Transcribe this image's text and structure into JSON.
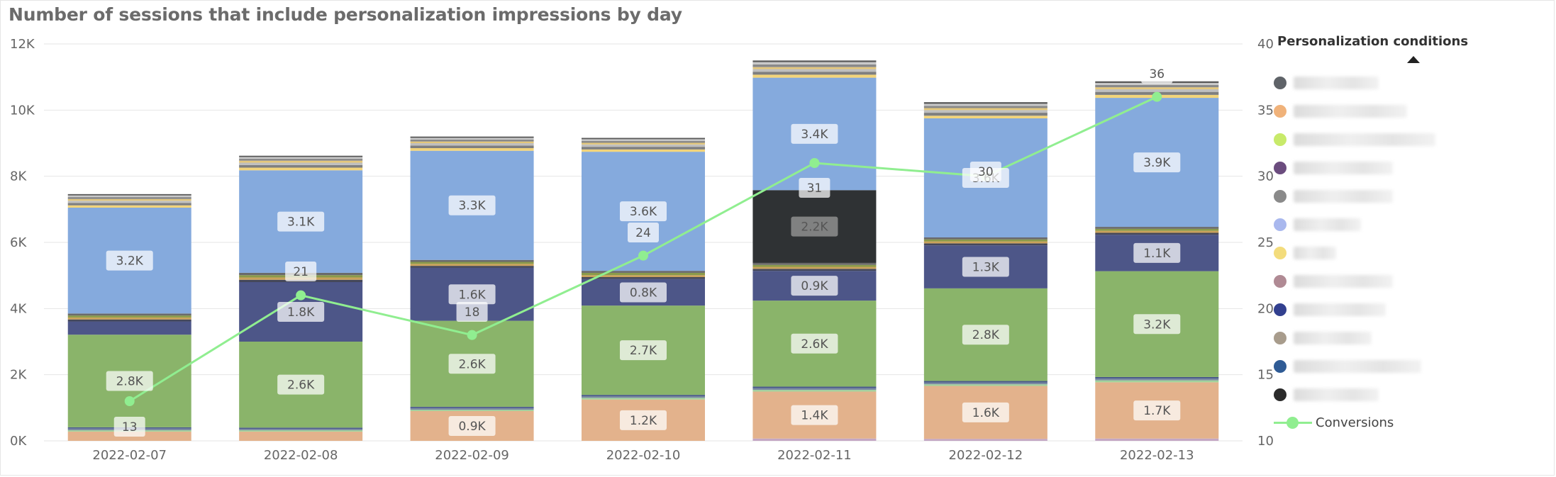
{
  "title": "Number of sessions that include personalization impressions by day",
  "legend": {
    "title": "Personalization conditions",
    "items": [
      {
        "icon": "legend-dot-icon",
        "color": "#5f6368"
      },
      {
        "icon": "legend-dot-icon",
        "color": "#f0b27a"
      },
      {
        "icon": "legend-dot-icon",
        "color": "#c8ea6a"
      },
      {
        "icon": "legend-dot-icon",
        "color": "#6b4c7e"
      },
      {
        "icon": "legend-dot-icon",
        "color": "#8a8a8a"
      },
      {
        "icon": "legend-dot-icon",
        "color": "#a9b8ee"
      },
      {
        "icon": "legend-dot-icon",
        "color": "#f3dc7c"
      },
      {
        "icon": "legend-dot-icon",
        "color": "#b08a94"
      },
      {
        "icon": "legend-dot-icon",
        "color": "#32408f"
      },
      {
        "icon": "legend-dot-icon",
        "color": "#a89c8c"
      },
      {
        "icon": "legend-dot-icon",
        "color": "#2f5b95"
      },
      {
        "icon": "legend-dot-icon",
        "color": "#2b2b2b"
      }
    ],
    "line_label": "Conversions",
    "line_color": "#90ee90"
  },
  "chart_data": {
    "type": "bar",
    "stacked": true,
    "categories": [
      "2022-02-07",
      "2022-02-08",
      "2022-02-09",
      "2022-02-10",
      "2022-02-11",
      "2022-02-12",
      "2022-02-13"
    ],
    "y_axis_left": {
      "ticks": [
        "0K",
        "2K",
        "4K",
        "6K",
        "8K",
        "10K",
        "12K"
      ],
      "range": [
        0,
        12000
      ]
    },
    "y_axis_right": {
      "ticks": [
        "10",
        "15",
        "20",
        "25",
        "30",
        "35",
        "40"
      ],
      "range": [
        10,
        40
      ]
    },
    "grid": true,
    "legend_position": "right",
    "series": [
      {
        "color": "#c4a7c4",
        "values": [
          0,
          0,
          0,
          0,
          70,
          60,
          70
        ]
      },
      {
        "color": "#e3b28c",
        "values": [
          280,
          280,
          900,
          1250,
          1420,
          1600,
          1700
        ],
        "labels": [
          "",
          "",
          "0.9K",
          "1.2K",
          "1.4K",
          "1.6K",
          "1.7K"
        ]
      },
      {
        "color": "#a3d39c",
        "values": [
          40,
          40,
          40,
          50,
          50,
          50,
          60
        ]
      },
      {
        "color": "#7a8aa0",
        "values": [
          50,
          40,
          50,
          50,
          50,
          50,
          50
        ]
      },
      {
        "color": "#4a5a8a",
        "values": [
          40,
          40,
          40,
          40,
          50,
          50,
          50
        ]
      },
      {
        "color": "#8ab46a",
        "values": [
          2800,
          2600,
          2600,
          2700,
          2600,
          2800,
          3200
        ],
        "labels": [
          "2.8K",
          "2.6K",
          "2.6K",
          "2.7K",
          "2.6K",
          "2.8K",
          "3.2K"
        ]
      },
      {
        "color": "#4d5688",
        "values": [
          400,
          1800,
          1600,
          800,
          900,
          1300,
          1100
        ],
        "labels": [
          "",
          "1.8K",
          "1.6K",
          "0.8K",
          "0.9K",
          "1.3K",
          "1.1K"
        ]
      },
      {
        "color": "#44475a",
        "values": [
          60,
          70,
          60,
          60,
          60,
          60,
          60
        ]
      },
      {
        "color": "#c9a15a",
        "values": [
          60,
          70,
          60,
          60,
          60,
          60,
          60
        ]
      },
      {
        "color": "#8a9a4a",
        "values": [
          60,
          70,
          60,
          70,
          60,
          60,
          60
        ]
      },
      {
        "color": "#6a6a6a",
        "values": [
          60,
          70,
          60,
          60,
          60,
          60,
          60
        ]
      },
      {
        "color": "#2f3234",
        "values": [
          0,
          0,
          0,
          0,
          2200,
          0,
          0
        ],
        "labels": [
          "",
          "",
          "",
          "",
          "2.2K",
          "",
          ""
        ]
      },
      {
        "color": "#85aadd",
        "values": [
          3200,
          3100,
          3300,
          3600,
          3400,
          3600,
          3900
        ],
        "labels": [
          "3.2K",
          "3.1K",
          "3.3K",
          "3.6K",
          "3.4K",
          "3.6K",
          "3.9K"
        ]
      },
      {
        "color": "#f2d47a",
        "values": [
          70,
          80,
          80,
          70,
          90,
          80,
          90
        ]
      },
      {
        "color": "#7f7f7f",
        "values": [
          70,
          80,
          80,
          80,
          90,
          90,
          90
        ]
      },
      {
        "color": "#bfbfbf",
        "values": [
          70,
          70,
          70,
          70,
          80,
          80,
          80
        ]
      },
      {
        "color": "#e4c77a",
        "values": [
          50,
          60,
          50,
          50,
          60,
          60,
          60
        ]
      },
      {
        "color": "#8a8a8a",
        "values": [
          60,
          60,
          60,
          60,
          80,
          70,
          70
        ]
      },
      {
        "color": "#c9c9c9",
        "values": [
          50,
          50,
          50,
          50,
          70,
          60,
          60
        ]
      },
      {
        "color": "#5a5a5a",
        "values": [
          40,
          40,
          40,
          40,
          50,
          50,
          50
        ]
      }
    ],
    "line": {
      "name": "Conversions",
      "axis": "right",
      "color": "#90ee90",
      "values": [
        13,
        21,
        18,
        24,
        31,
        30,
        36
      ],
      "labels": [
        "13",
        "21",
        "18",
        "24",
        "31",
        "30",
        "36"
      ]
    }
  }
}
